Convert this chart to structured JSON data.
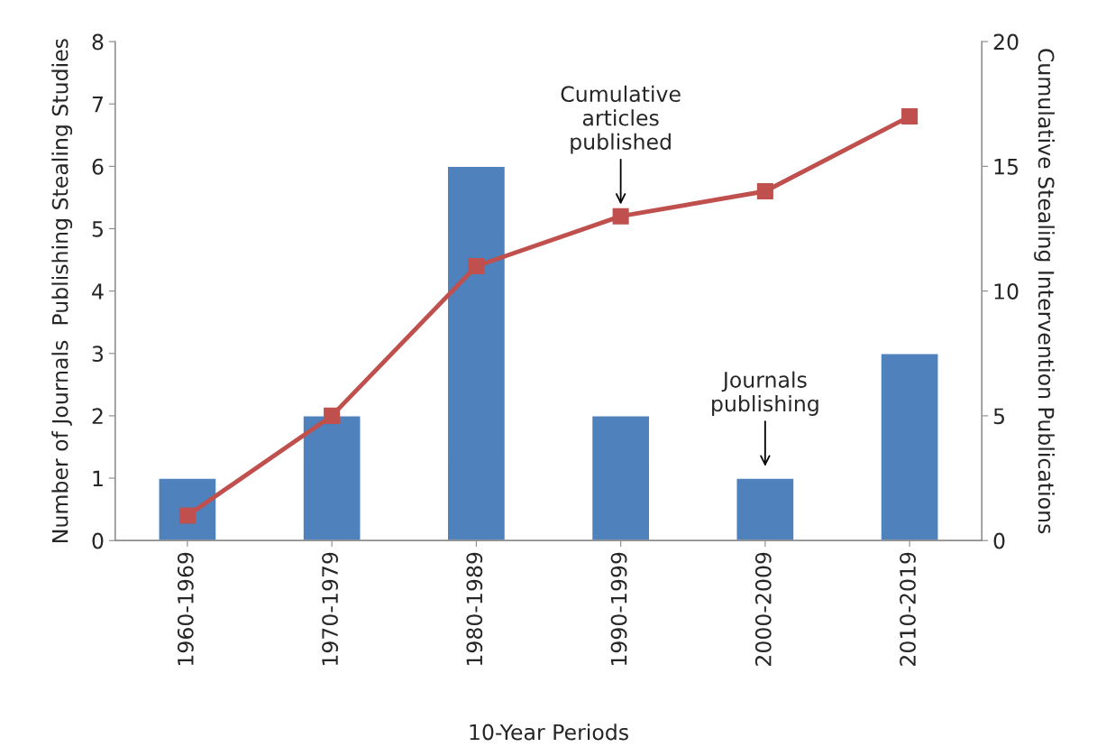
{
  "chart_data": {
    "type": "bar",
    "xlabel": "10-Year Periods",
    "ylabel": "Number of Journals  Publishing Stealing Studies",
    "y2label": "Cumulative Stealing Intervention Publications",
    "categories": [
      "1960-1969",
      "1970-1979",
      "1980-1989",
      "1990-1999",
      "2000-2009",
      "2010-2019"
    ],
    "series": [
      {
        "color": "#4f81bd",
        "values": [
          1,
          2,
          6,
          2,
          1,
          3
        ]
      },
      {
        "type": "line",
        "axis": "y2",
        "color": "#c0504d",
        "marker": "square",
        "values": [
          1,
          5,
          11,
          13,
          14,
          17
        ]
      }
    ],
    "ylim": [
      0,
      8
    ],
    "yticks": [
      0,
      1,
      2,
      3,
      4,
      5,
      6,
      7,
      8
    ],
    "y2lim": [
      0,
      20
    ],
    "y2ticks": [
      0,
      5,
      10,
      15,
      20
    ],
    "grid": false,
    "legend": false,
    "annotations": [
      {
        "text": "Cumulative\narticles\npublished",
        "x": "1990-1999",
        "y": 5.2
      },
      {
        "text": "Journals\npublishing",
        "x": "2000-2009",
        "y": 1
      }
    ]
  }
}
